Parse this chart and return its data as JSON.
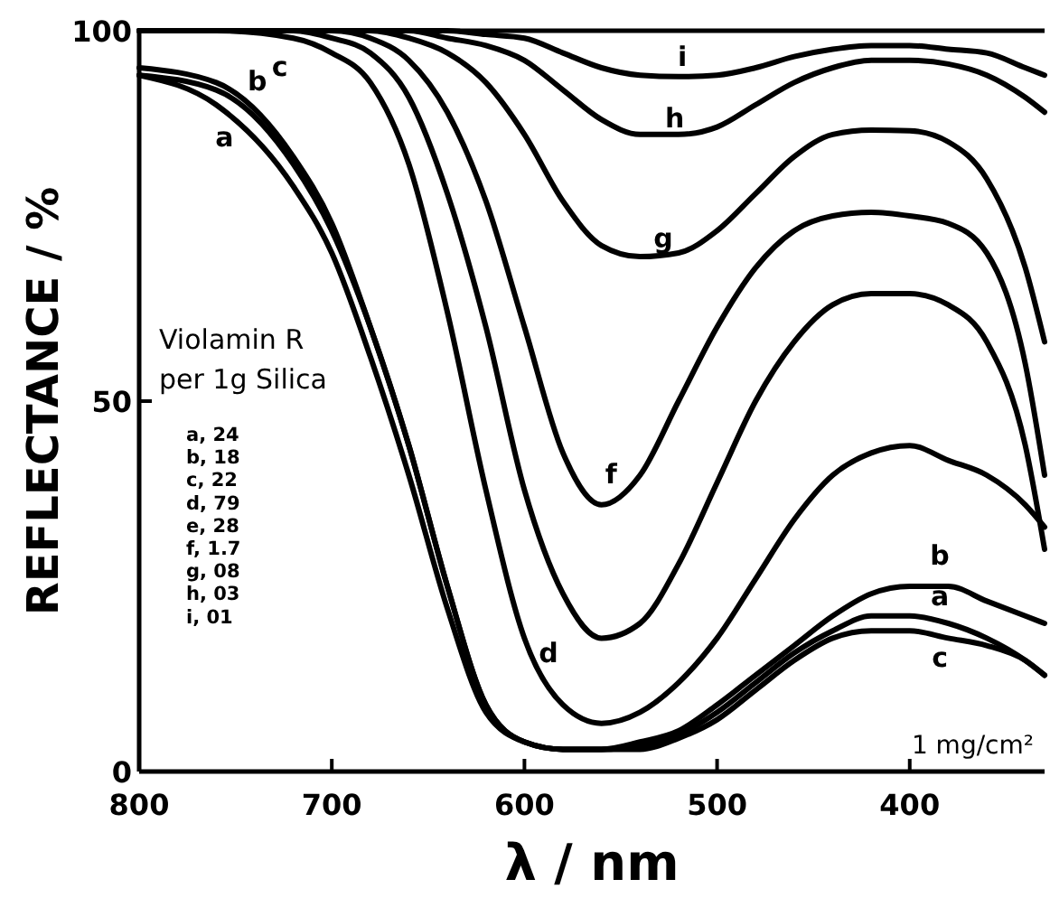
{
  "chart_data": {
    "type": "line",
    "xlabel": "λ / nm",
    "ylabel": "REFLECTANCE / %",
    "xlim": [
      800,
      330
    ],
    "xticks": [
      800,
      700,
      600,
      500,
      400
    ],
    "ylim": [
      0,
      100
    ],
    "yticks": [
      0,
      50,
      100
    ],
    "line_style": "solid",
    "x": [
      800,
      760,
      720,
      700,
      680,
      660,
      640,
      620,
      600,
      580,
      560,
      540,
      520,
      500,
      480,
      460,
      440,
      420,
      400,
      380,
      360,
      340,
      330
    ],
    "series": [
      {
        "name": "a",
        "color": "#000000",
        "values": [
          94,
          90,
          79,
          70,
          56,
          40,
          22,
          8,
          4,
          3,
          3,
          3.5,
          5,
          8,
          12,
          16,
          19,
          21,
          21,
          20,
          18,
          15,
          13
        ]
      },
      {
        "name": "b",
        "color": "#000000",
        "values": [
          94,
          92,
          82,
          73,
          60,
          44,
          25,
          9,
          4,
          3,
          3,
          4,
          5.5,
          9,
          13,
          17,
          21,
          24,
          25,
          25,
          23,
          21,
          20
        ]
      },
      {
        "name": "c",
        "color": "#000000",
        "values": [
          95,
          93,
          83,
          74,
          60,
          44,
          25,
          9,
          4,
          3,
          3,
          3,
          4.5,
          7,
          11,
          15,
          18,
          19,
          19,
          18,
          17,
          15,
          13
        ]
      },
      {
        "name": "d",
        "color": "#000000",
        "values": [
          100,
          100,
          99,
          97,
          93,
          82,
          62,
          38,
          18,
          9,
          6.5,
          8,
          12,
          18,
          26,
          34,
          40,
          43,
          44,
          42,
          40,
          36,
          33
        ]
      },
      {
        "color": "#000000",
        "values": [
          100,
          100,
          100,
          99,
          97,
          91,
          78,
          60,
          38,
          24,
          18,
          20,
          28,
          39,
          50,
          58,
          63,
          64.5,
          64.5,
          63,
          58,
          44,
          30
        ]
      },
      {
        "name": "f",
        "color": "#000000",
        "values": [
          100,
          100,
          100,
          100,
          99,
          96,
          89,
          77,
          60,
          43,
          36,
          40,
          50,
          60,
          68,
          73,
          75,
          75.5,
          75,
          74,
          70,
          55,
          40
        ]
      },
      {
        "name": "g",
        "color": "#000000",
        "values": [
          100,
          100,
          100,
          100,
          100,
          99,
          97,
          93,
          86,
          77,
          71,
          69.5,
          70,
          73,
          78,
          83,
          86,
          86.6,
          86.5,
          85,
          80,
          68,
          58
        ]
      },
      {
        "name": "h",
        "color": "#000000",
        "values": [
          100,
          100,
          100,
          100,
          100,
          100,
          99,
          98,
          96,
          92,
          88,
          86,
          86,
          87,
          90,
          93,
          95,
          96,
          96,
          95.5,
          94,
          91,
          89
        ]
      },
      {
        "name": "i",
        "color": "#000000",
        "values": [
          100,
          100,
          100,
          100,
          100,
          100,
          100,
          99.5,
          99,
          97,
          95,
          94,
          93.8,
          94,
          95,
          96.5,
          97.5,
          98,
          98,
          97.5,
          97,
          95,
          94
        ]
      }
    ],
    "annotations": [
      "Violamin R",
      "per 1g Silica",
      "a, 24",
      "b, 18",
      "c, 22",
      "d, 79",
      "e, 28",
      "f, 1.7",
      "g, 08",
      "h, 03",
      "i, 01",
      "1 mg/cm²"
    ]
  }
}
